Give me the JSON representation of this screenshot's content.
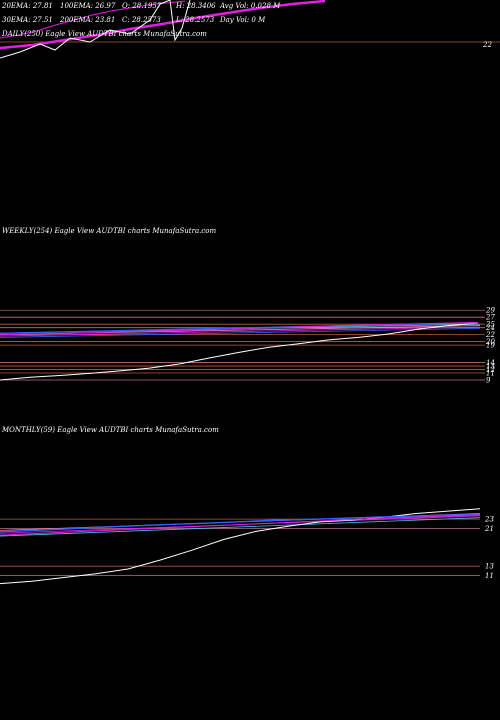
{
  "daily": {
    "ema_row1": [
      "20EMA: 27.81",
      "100EMA: 26.97",
      "O: 28.1957",
      "H: 28.3406",
      "Avg Vol: 0.028  M"
    ],
    "ema_row2": [
      "30EMA: 27.51",
      "200EMA: 23.81",
      "C: 28.2573",
      "L: 28.2573",
      "Day Vol: 0  M"
    ],
    "title": "DAILY(250) Eagle  View  AUDTBI charts MunafaSutra.com",
    "tick_labels": [
      "22"
    ]
  },
  "weekly": {
    "title": "WEEKLY(254) Eagle  View  AUDTBI charts MunafaSutra.com",
    "tick_labels": [
      "29",
      "27",
      "25",
      "24",
      "22",
      "20",
      "19",
      "14",
      "13",
      "12",
      "11",
      "9"
    ]
  },
  "monthly": {
    "title": "MONTHLY(59) Eagle  View  AUDTBI charts MunafaSutra.com",
    "tick_labels": [
      "23",
      "21",
      "13",
      "11"
    ]
  },
  "colors": {
    "background": "#000000",
    "price": "#ffffff",
    "ma_magenta": "#e020e0",
    "ma_blue": "#3060ff",
    "ma_cyan": "#40c0e0",
    "ma_pink": "#ff80c0",
    "level_orange": "#b06030",
    "level_pink": "#c07080"
  },
  "chart_data": [
    {
      "type": "line",
      "title": "DAILY(250) Eagle  View  AUDTBI charts MunafaSutra.com",
      "series": [
        {
          "values": [
            23.6,
            23.9,
            24.4,
            24.9,
            25.5,
            26.0,
            26.6,
            27.1,
            27.6,
            28.0,
            28.3
          ]
        },
        {
          "values": [
            24.6,
            24.9,
            25.3,
            25.9,
            26.4,
            26.9,
            27.3,
            27.6,
            27.9,
            28.1,
            28.3
          ]
        }
      ],
      "yticks": [
        22
      ]
    },
    {
      "type": "line",
      "title": "WEEKLY(254) Eagle  View  AUDTBI charts MunafaSutra.com",
      "series": [
        {
          "values": [
            9.0,
            9.8,
            10.3,
            10.9,
            11.6,
            12.4,
            13.6,
            15.3,
            16.9,
            18.4,
            19.4,
            20.5,
            21.2,
            22.2,
            23.6,
            24.6,
            25.3
          ]
        },
        {
          "values": [
            22.4,
            22.7,
            23.0,
            23.3,
            23.6,
            23.9,
            24.2,
            24.5,
            24.8,
            25.1,
            25.4
          ]
        },
        {
          "values": [
            22.0,
            22.3,
            22.6,
            23.0,
            23.3,
            23.7,
            24.1,
            24.5,
            24.9,
            25.2,
            25.5
          ]
        }
      ],
      "yticks": [
        29,
        27,
        25,
        24,
        22,
        20,
        19,
        14,
        13,
        12,
        11,
        9
      ]
    },
    {
      "type": "line",
      "title": "MONTHLY(59) Eagle  View  AUDTBI charts MunafaSutra.com",
      "series": [
        {
          "values": [
            9.3,
            9.8,
            10.6,
            11.4,
            12.4,
            14.3,
            16.4,
            18.7,
            20.4,
            21.5,
            22.4,
            22.8,
            23.4,
            24.2,
            24.7,
            25.2
          ]
        },
        {
          "values": [
            20.3,
            20.8,
            21.3,
            21.8,
            22.2,
            22.7,
            23.0,
            23.4,
            23.7,
            24.0
          ]
        },
        {
          "values": [
            19.6,
            20.1,
            20.6,
            21.1,
            21.6,
            22.1,
            22.6,
            23.1,
            23.5,
            23.9
          ]
        }
      ],
      "yticks": [
        23,
        21,
        13,
        11
      ]
    }
  ]
}
